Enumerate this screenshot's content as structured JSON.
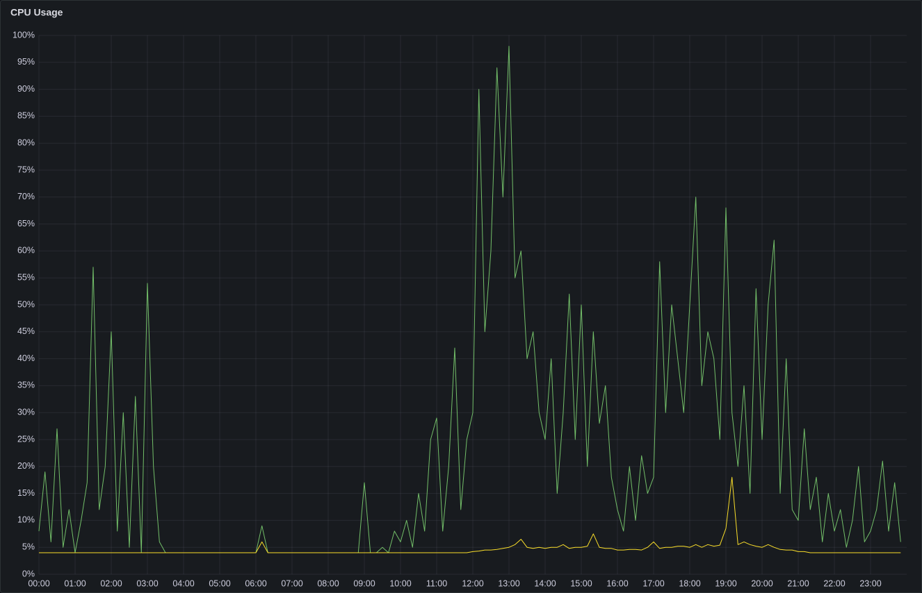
{
  "chart_data": {
    "type": "line",
    "title": "CPU Usage",
    "x": [
      0,
      10,
      20,
      30,
      40,
      50,
      60,
      70,
      80,
      90,
      100,
      110,
      120,
      130,
      140,
      150,
      160,
      170,
      180,
      190,
      200,
      210,
      220,
      230,
      240,
      250,
      260,
      270,
      280,
      290,
      300,
      310,
      320,
      330,
      340,
      350,
      360,
      370,
      380,
      390,
      400,
      410,
      420,
      430,
      440,
      450,
      460,
      470,
      480,
      490,
      500,
      510,
      520,
      530,
      540,
      550,
      560,
      570,
      580,
      590,
      600,
      610,
      620,
      630,
      640,
      650,
      660,
      670,
      680,
      690,
      700,
      710,
      720,
      730,
      740,
      750,
      760,
      770,
      780,
      790,
      800,
      810,
      820,
      830,
      840,
      850,
      860,
      870,
      880,
      890,
      900,
      910,
      920,
      930,
      940,
      950,
      960,
      970,
      980,
      990,
      1000,
      1010,
      1020,
      1030,
      1040,
      1050,
      1060,
      1070,
      1080,
      1090,
      1100,
      1110,
      1120,
      1130,
      1140,
      1150,
      1160,
      1170,
      1180,
      1190,
      1200,
      1210,
      1220,
      1230,
      1240,
      1250,
      1260,
      1270,
      1280,
      1290,
      1300,
      1310,
      1320,
      1330,
      1340,
      1350,
      1360,
      1370,
      1380,
      1390,
      1400,
      1410,
      1420,
      1430
    ],
    "series": [
      {
        "color": "#73bf69",
        "values": [
          8,
          19,
          6,
          27,
          5,
          12,
          4,
          10,
          17,
          57,
          12,
          20,
          45,
          8,
          30,
          5,
          33,
          4,
          54,
          20,
          6,
          4,
          4,
          4,
          4,
          4,
          4,
          4,
          4,
          4,
          4,
          4,
          4,
          4,
          4,
          4,
          4,
          9,
          4,
          4,
          4,
          4,
          4,
          4,
          4,
          4,
          4,
          4,
          4,
          4,
          4,
          4,
          4,
          4,
          17,
          4,
          4,
          5,
          4,
          8,
          6,
          10,
          5,
          15,
          8,
          25,
          29,
          8,
          20,
          42,
          12,
          25,
          30,
          90,
          45,
          60,
          94,
          70,
          98,
          55,
          60,
          40,
          45,
          30,
          25,
          40,
          15,
          30,
          52,
          25,
          50,
          20,
          45,
          28,
          35,
          18,
          12,
          8,
          20,
          10,
          22,
          15,
          18,
          58,
          30,
          50,
          40,
          30,
          50,
          70,
          35,
          45,
          40,
          25,
          68,
          30,
          20,
          35,
          15,
          53,
          25,
          50,
          62,
          15,
          40,
          12,
          10,
          27,
          12,
          18,
          6,
          15,
          8,
          12,
          5,
          10,
          20,
          6,
          8,
          12,
          21,
          8,
          17,
          6
        ]
      },
      {
        "color": "#fade2a",
        "values": [
          4,
          4,
          4,
          4,
          4,
          4,
          4,
          4,
          4,
          4,
          4,
          4,
          4,
          4,
          4,
          4,
          4,
          4,
          4,
          4,
          4,
          4,
          4,
          4,
          4,
          4,
          4,
          4,
          4,
          4,
          4,
          4,
          4,
          4,
          4,
          4,
          4,
          6,
          4,
          4,
          4,
          4,
          4,
          4,
          4,
          4,
          4,
          4,
          4,
          4,
          4,
          4,
          4,
          4,
          4,
          4,
          4,
          4,
          4,
          4,
          4,
          4,
          4,
          4,
          4,
          4,
          4,
          4,
          4,
          4,
          4,
          4,
          4.2,
          4.3,
          4.5,
          4.5,
          4.6,
          4.8,
          5,
          5.5,
          6.5,
          5,
          4.8,
          5,
          4.8,
          5,
          5,
          5.5,
          4.8,
          5,
          5,
          5.2,
          7.5,
          5,
          4.8,
          4.8,
          4.5,
          4.5,
          4.6,
          4.6,
          4.5,
          5,
          6,
          4.8,
          5,
          5,
          5.2,
          5.2,
          5,
          5.5,
          5,
          5.5,
          5.2,
          5.4,
          8.5,
          18,
          5.5,
          6,
          5.5,
          5.2,
          5,
          5.5,
          5,
          4.6,
          4.5,
          4.5,
          4.2,
          4.2,
          4,
          4,
          4,
          4,
          4,
          4,
          4,
          4,
          4,
          4,
          4,
          4,
          4,
          4,
          4,
          4
        ]
      }
    ],
    "xlim": [
      0,
      1440
    ],
    "xticks": [
      {
        "value": 0,
        "label": "00:00"
      },
      {
        "value": 60,
        "label": "01:00"
      },
      {
        "value": 120,
        "label": "02:00"
      },
      {
        "value": 180,
        "label": "03:00"
      },
      {
        "value": 240,
        "label": "04:00"
      },
      {
        "value": 300,
        "label": "05:00"
      },
      {
        "value": 360,
        "label": "06:00"
      },
      {
        "value": 420,
        "label": "07:00"
      },
      {
        "value": 480,
        "label": "08:00"
      },
      {
        "value": 540,
        "label": "09:00"
      },
      {
        "value": 600,
        "label": "10:00"
      },
      {
        "value": 660,
        "label": "11:00"
      },
      {
        "value": 720,
        "label": "12:00"
      },
      {
        "value": 780,
        "label": "13:00"
      },
      {
        "value": 840,
        "label": "14:00"
      },
      {
        "value": 900,
        "label": "15:00"
      },
      {
        "value": 960,
        "label": "16:00"
      },
      {
        "value": 1020,
        "label": "17:00"
      },
      {
        "value": 1080,
        "label": "18:00"
      },
      {
        "value": 1140,
        "label": "19:00"
      },
      {
        "value": 1200,
        "label": "20:00"
      },
      {
        "value": 1260,
        "label": "21:00"
      },
      {
        "value": 1320,
        "label": "22:00"
      },
      {
        "value": 1380,
        "label": "23:00"
      }
    ],
    "ylim": [
      0,
      100
    ],
    "yticks": [
      {
        "value": 0,
        "label": "0%"
      },
      {
        "value": 5,
        "label": "5%"
      },
      {
        "value": 10,
        "label": "10%"
      },
      {
        "value": 15,
        "label": "15%"
      },
      {
        "value": 20,
        "label": "20%"
      },
      {
        "value": 25,
        "label": "25%"
      },
      {
        "value": 30,
        "label": "30%"
      },
      {
        "value": 35,
        "label": "35%"
      },
      {
        "value": 40,
        "label": "40%"
      },
      {
        "value": 45,
        "label": "45%"
      },
      {
        "value": 50,
        "label": "50%"
      },
      {
        "value": 55,
        "label": "55%"
      },
      {
        "value": 60,
        "label": "60%"
      },
      {
        "value": 65,
        "label": "65%"
      },
      {
        "value": 70,
        "label": "70%"
      },
      {
        "value": 75,
        "label": "75%"
      },
      {
        "value": 80,
        "label": "80%"
      },
      {
        "value": 85,
        "label": "85%"
      },
      {
        "value": 90,
        "label": "90%"
      },
      {
        "value": 95,
        "label": "95%"
      },
      {
        "value": 100,
        "label": "100%"
      }
    ],
    "grid": true
  }
}
